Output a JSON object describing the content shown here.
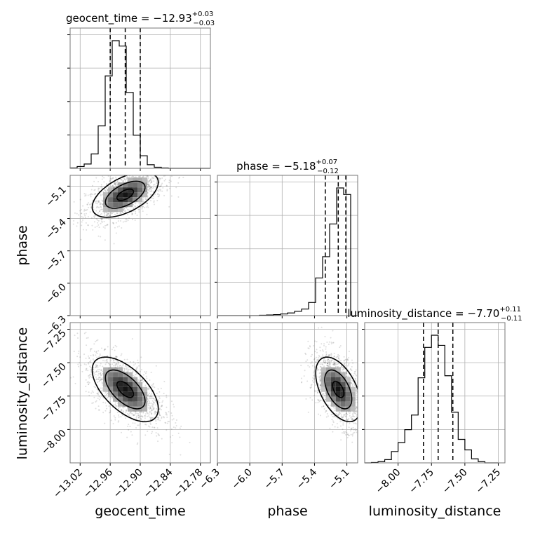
{
  "chart_data": {
    "type": "corner",
    "parameters": [
      "geocent_time",
      "phase",
      "luminosity_distance"
    ],
    "titles": [
      {
        "param": "geocent_time",
        "prefix": "geocent_time = ",
        "median": "−12.93",
        "plus": "+0.03",
        "minus": "−0.03"
      },
      {
        "param": "phase",
        "prefix": "phase = ",
        "median": "−5.18",
        "plus": "+0.07",
        "minus": "−0.12"
      },
      {
        "param": "luminosity_distance",
        "prefix": "luminosity_distance = ",
        "median": "−7.70",
        "plus": "+0.11",
        "minus": "−0.11"
      }
    ],
    "ranges": {
      "geocent_time": [
        -13.04,
        -12.76
      ],
      "phase": [
        -6.3,
        -5.0
      ],
      "luminosity_distance": [
        -8.25,
        -7.2
      ]
    },
    "ticks": {
      "geocent_time": {
        "values": [
          -13.02,
          -12.96,
          -12.9,
          -12.84,
          -12.78
        ],
        "labels": [
          "−13.02",
          "−12.96",
          "−12.90",
          "−12.84",
          "−12.78"
        ]
      },
      "phase": {
        "values": [
          -6.3,
          -6.0,
          -5.7,
          -5.4,
          -5.1
        ],
        "labels": [
          "−6.3",
          "−6.0",
          "−5.7",
          "−5.4",
          "−5.1"
        ]
      },
      "luminosity_distance": {
        "values": [
          -8.0,
          -7.75,
          -7.5,
          -7.25
        ],
        "labels": [
          "−8.00",
          "−7.75",
          "−7.50",
          "−7.25"
        ]
      }
    },
    "quantiles": {
      "geocent_time": [
        -12.96,
        -12.93,
        -12.9
      ],
      "phase": [
        -5.3,
        -5.18,
        -5.11
      ],
      "luminosity_distance": [
        -7.81,
        -7.7,
        -7.59
      ]
    },
    "histograms": {
      "geocent_time": {
        "edges": [
          -13.04,
          -13.026,
          -13.012,
          -12.998,
          -12.984,
          -12.97,
          -12.956,
          -12.942,
          -12.928,
          -12.914,
          -12.9,
          -12.886,
          -12.872,
          -12.858,
          -12.844,
          -12.83,
          -12.816,
          -12.802,
          -12.788,
          -12.774,
          -12.76
        ],
        "counts": [
          1,
          5,
          12,
          40,
          118,
          257,
          355,
          340,
          211,
          92,
          35,
          10,
          3,
          1,
          0,
          0,
          0,
          0,
          0,
          0
        ]
      },
      "phase": {
        "edges": [
          -6.3,
          -6.235,
          -6.17,
          -6.105,
          -6.04,
          -5.975,
          -5.91,
          -5.845,
          -5.78,
          -5.715,
          -5.65,
          -5.585,
          -5.52,
          -5.455,
          -5.39,
          -5.325,
          -5.26,
          -5.195,
          -5.13,
          -5.065,
          -5.0
        ],
        "counts": [
          0,
          0,
          0,
          0,
          0,
          0,
          1,
          2,
          3,
          5,
          8,
          13,
          20,
          40,
          115,
          180,
          280,
          390,
          370,
          0
        ]
      },
      "luminosity_distance": {
        "edges": [
          -8.25,
          -8.2,
          -8.15,
          -8.1,
          -8.05,
          -8.0,
          -7.95,
          -7.9,
          -7.85,
          -7.8,
          -7.75,
          -7.7,
          -7.65,
          -7.6,
          -7.55,
          -7.5,
          -7.45,
          -7.4,
          -7.35,
          -7.3,
          -7.25
        ],
        "counts": [
          0,
          1,
          3,
          8,
          28,
          50,
          82,
          118,
          210,
          285,
          315,
          290,
          215,
          125,
          58,
          32,
          10,
          3,
          0,
          0
        ]
      }
    },
    "correlations": {
      "phase_vs_geocent_time": 0.55,
      "luminosity_distance_vs_geocent_time": -0.6,
      "luminosity_distance_vs_phase": -0.5
    }
  }
}
